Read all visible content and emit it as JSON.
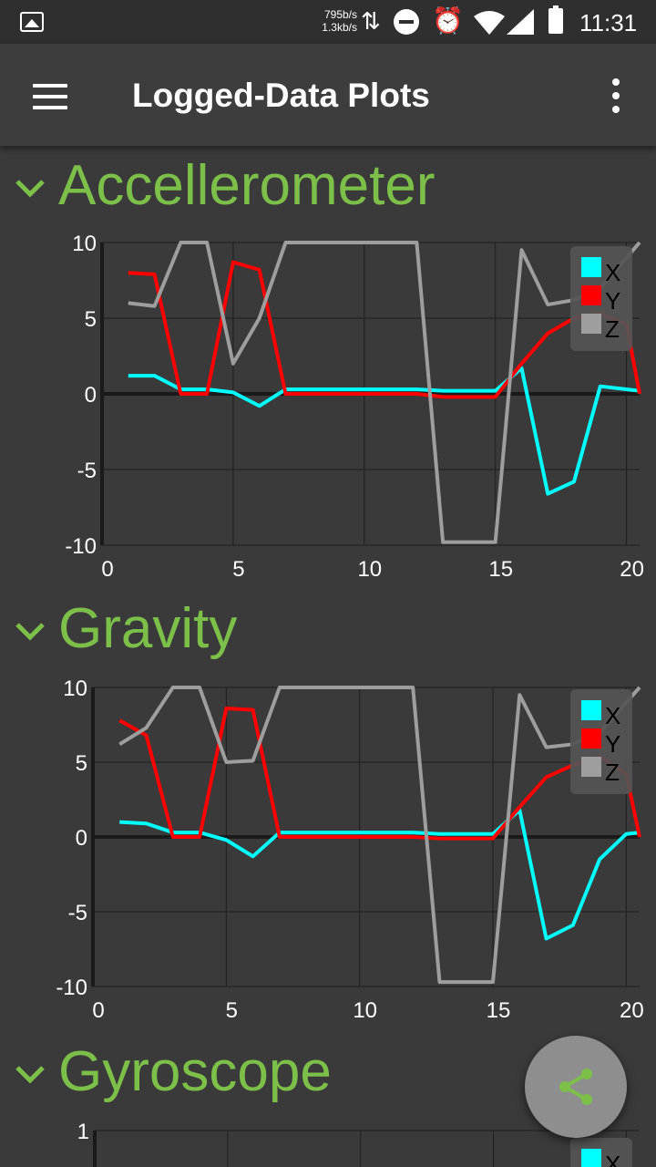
{
  "status_bar": {
    "rate_up": "795b/s",
    "rate_down": "1.3kb/s",
    "time": "11:31",
    "icons": [
      "image-icon",
      "data-arrows-icon",
      "do-not-disturb-icon",
      "alarm-icon",
      "wifi-icon",
      "cell-signal-icon",
      "battery-icon"
    ]
  },
  "toolbar": {
    "title": "Logged-Data Plots",
    "menu_icon": "hamburger-menu-icon",
    "overflow_icon": "more-vert-icon"
  },
  "colors": {
    "accent": "#7cc04a",
    "x": "#00ffff",
    "y": "#ff0000",
    "z": "#9e9e9e",
    "background": "#3a3a3a"
  },
  "sections": [
    {
      "title": "Accellerometer"
    },
    {
      "title": "Gravity"
    },
    {
      "title": "Gyroscope"
    }
  ],
  "chart_data": [
    {
      "type": "line",
      "title": "Accellerometer",
      "xlim": [
        0,
        20.5
      ],
      "ylim": [
        -10,
        10
      ],
      "xticks": [
        0,
        5,
        10,
        15,
        20
      ],
      "yticks": [
        10,
        5,
        0,
        -5,
        -10
      ],
      "grid": true,
      "legend": "top-right",
      "series": [
        {
          "name": "X",
          "color": "#00ffff",
          "x": [
            1,
            2,
            3,
            4,
            5,
            6,
            7,
            8,
            9,
            10,
            11,
            12,
            13,
            14,
            15,
            16,
            17,
            18,
            19,
            20,
            20.5
          ],
          "y": [
            1.2,
            1.2,
            0.3,
            0.3,
            0.1,
            -0.8,
            0.3,
            0.3,
            0.3,
            0.3,
            0.3,
            0.3,
            0.2,
            0.2,
            0.2,
            1.7,
            -6.6,
            -5.8,
            0.5,
            0.3,
            0.2
          ]
        },
        {
          "name": "Y",
          "color": "#ff0000",
          "x": [
            1,
            2,
            3,
            4,
            5,
            6,
            7,
            8,
            9,
            10,
            11,
            12,
            13,
            14,
            15,
            16,
            17,
            18,
            19,
            20,
            20.5
          ],
          "y": [
            8,
            7.9,
            0,
            0,
            8.7,
            8.2,
            0,
            0,
            0,
            0,
            0,
            0,
            -0.2,
            -0.2,
            -0.2,
            2,
            4,
            5,
            5.3,
            4.6,
            0
          ]
        },
        {
          "name": "Z",
          "color": "#9e9e9e",
          "x": [
            1,
            2,
            3,
            4,
            5,
            6,
            7,
            8,
            9,
            10,
            11,
            12,
            13,
            14,
            15,
            16,
            17,
            18,
            19,
            20,
            20.5
          ],
          "y": [
            6,
            5.8,
            10,
            10,
            2,
            5,
            10,
            10,
            10,
            10,
            10,
            10,
            -9.8,
            -9.8,
            -9.8,
            9.5,
            5.9,
            6.2,
            7,
            9,
            10
          ]
        }
      ]
    },
    {
      "type": "line",
      "title": "Gravity",
      "xlim": [
        0,
        20.5
      ],
      "ylim": [
        -10,
        10
      ],
      "xticks": [
        0,
        5,
        10,
        15,
        20
      ],
      "yticks": [
        10,
        5,
        0,
        -5,
        -10
      ],
      "grid": true,
      "legend": "top-right",
      "series": [
        {
          "name": "X",
          "color": "#00ffff",
          "x": [
            1,
            2,
            3,
            4,
            5,
            6,
            7,
            8,
            9,
            10,
            11,
            12,
            13,
            14,
            15,
            16,
            17,
            18,
            19,
            20,
            20.5
          ],
          "y": [
            1,
            0.9,
            0.3,
            0.3,
            -0.2,
            -1.3,
            0.3,
            0.3,
            0.3,
            0.3,
            0.3,
            0.3,
            0.2,
            0.2,
            0.2,
            1.8,
            -6.8,
            -5.9,
            -1.5,
            0.2,
            0.3
          ]
        },
        {
          "name": "Y",
          "color": "#ff0000",
          "x": [
            1,
            2,
            3,
            4,
            5,
            6,
            7,
            8,
            9,
            10,
            11,
            12,
            13,
            14,
            15,
            16,
            17,
            18,
            19,
            20,
            20.5
          ],
          "y": [
            7.8,
            6.8,
            0,
            0,
            8.6,
            8.5,
            0,
            0,
            0,
            0,
            0,
            0,
            -0.1,
            -0.1,
            -0.1,
            2,
            4,
            4.8,
            5.4,
            4.2,
            0
          ]
        },
        {
          "name": "Z",
          "color": "#9e9e9e",
          "x": [
            1,
            2,
            3,
            4,
            5,
            6,
            7,
            8,
            9,
            10,
            11,
            12,
            13,
            14,
            15,
            16,
            17,
            18,
            19,
            20,
            20.5
          ],
          "y": [
            6.2,
            7.3,
            10,
            10,
            5,
            5.1,
            10,
            10,
            10,
            10,
            10,
            10,
            -9.7,
            -9.7,
            -9.7,
            9.5,
            6,
            6.2,
            7,
            9,
            10
          ]
        }
      ]
    },
    {
      "type": "line",
      "title": "Gyroscope",
      "xlim": [
        0,
        20.5
      ],
      "ylim": [
        -1,
        1
      ],
      "yticks": [
        1
      ],
      "grid": true,
      "legend": "top-right",
      "series": [
        {
          "name": "X",
          "color": "#00ffff",
          "x": [],
          "y": []
        }
      ]
    }
  ],
  "fab": {
    "icon": "share-icon"
  }
}
